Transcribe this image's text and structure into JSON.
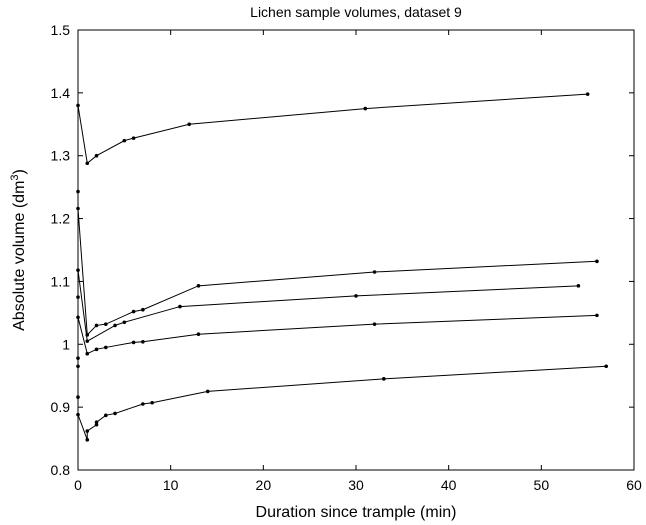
{
  "chart_data": {
    "type": "line",
    "title": "Lichen sample volumes, dataset 9",
    "xlabel": "Duration since trample (min)",
    "ylabel_main": "Absolute volume (dm",
    "ylabel_sup": "3",
    "ylabel_close": ")",
    "xlim": [
      0,
      60
    ],
    "ylim": [
      0.8,
      1.5
    ],
    "xticks": [
      0,
      10,
      20,
      30,
      40,
      50,
      60
    ],
    "xtick_labels": [
      "0",
      "10",
      "20",
      "30",
      "40",
      "50",
      "60"
    ],
    "yticks": [
      0.8,
      0.9,
      1.0,
      1.1,
      1.2,
      1.3,
      1.4,
      1.5
    ],
    "ytick_labels": [
      "0.8",
      "0.9",
      "1",
      "1.1",
      "1.2",
      "1.3",
      "1.4",
      "1.5"
    ],
    "grid": false,
    "line_color": "#000000",
    "series": [
      {
        "points": [
          [
            0,
            1.38
          ],
          [
            1,
            1.288
          ],
          [
            2,
            1.3
          ],
          [
            5,
            1.324
          ],
          [
            6,
            1.328
          ],
          [
            12,
            1.35
          ],
          [
            31,
            1.375
          ],
          [
            55,
            1.398
          ]
        ]
      },
      {
        "points": [
          [
            0,
            1.243
          ],
          [
            0,
            1.216
          ],
          [
            1,
            1.015
          ],
          [
            2,
            1.03
          ],
          [
            3,
            1.032
          ],
          [
            6,
            1.052
          ],
          [
            7,
            1.055
          ],
          [
            13,
            1.093
          ],
          [
            32,
            1.115
          ],
          [
            56,
            1.132
          ]
        ]
      },
      {
        "points": [
          [
            0,
            1.118
          ],
          [
            1,
            1.005
          ],
          [
            4,
            1.03
          ],
          [
            5,
            1.035
          ],
          [
            11,
            1.06
          ],
          [
            30,
            1.077
          ],
          [
            54,
            1.093
          ]
        ]
      },
      {
        "points": [
          [
            0,
            1.075
          ],
          [
            0,
            1.043
          ],
          [
            1,
            0.985
          ],
          [
            2,
            0.992
          ],
          [
            3,
            0.995
          ],
          [
            6,
            1.003
          ],
          [
            7,
            1.004
          ],
          [
            13,
            1.016
          ],
          [
            32,
            1.032
          ],
          [
            56,
            1.046
          ]
        ]
      },
      {
        "points": [
          [
            0,
            0.978
          ],
          [
            0,
            0.965
          ],
          [
            0,
            0.916
          ],
          [
            0,
            0.888
          ],
          [
            1,
            0.848
          ],
          [
            1,
            0.862
          ],
          [
            2,
            0.872
          ],
          [
            2,
            0.876
          ],
          [
            3,
            0.887
          ],
          [
            4,
            0.89
          ],
          [
            7,
            0.905
          ],
          [
            8,
            0.907
          ],
          [
            14,
            0.925
          ],
          [
            33,
            0.945
          ],
          [
            57,
            0.965
          ]
        ]
      }
    ]
  }
}
